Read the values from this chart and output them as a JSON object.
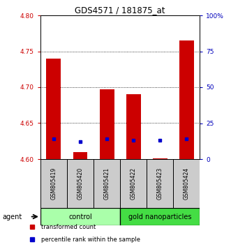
{
  "title": "GDS4571 / 181875_at",
  "samples": [
    "GSM805419",
    "GSM805420",
    "GSM805421",
    "GSM805422",
    "GSM805423",
    "GSM805424"
  ],
  "red_values": [
    4.74,
    4.61,
    4.697,
    4.69,
    4.601,
    4.765
  ],
  "blue_values_pct": [
    14.0,
    12.0,
    14.0,
    13.0,
    13.0,
    14.0
  ],
  "bar_bottom": 4.6,
  "ylim_left": [
    4.6,
    4.8
  ],
  "ylim_right": [
    0,
    100
  ],
  "yticks_left": [
    4.6,
    4.65,
    4.7,
    4.75,
    4.8
  ],
  "yticks_right": [
    0,
    25,
    50,
    75,
    100
  ],
  "ytick_labels_right": [
    "0",
    "25",
    "50",
    "75",
    "100%"
  ],
  "groups": [
    {
      "label": "control",
      "indices": [
        0,
        1,
        2
      ],
      "color": "#aaffaa"
    },
    {
      "label": "gold nanoparticles",
      "indices": [
        3,
        4,
        5
      ],
      "color": "#44dd44"
    }
  ],
  "agent_label": "agent",
  "legend_items": [
    {
      "color": "#cc0000",
      "label": "transformed count"
    },
    {
      "color": "#0000cc",
      "label": "percentile rank within the sample"
    }
  ],
  "bar_color": "#cc0000",
  "dot_color": "#0000cc",
  "left_tick_color": "#cc0000",
  "right_tick_color": "#0000bb",
  "sample_area_color": "#cccccc",
  "bar_width": 0.55
}
